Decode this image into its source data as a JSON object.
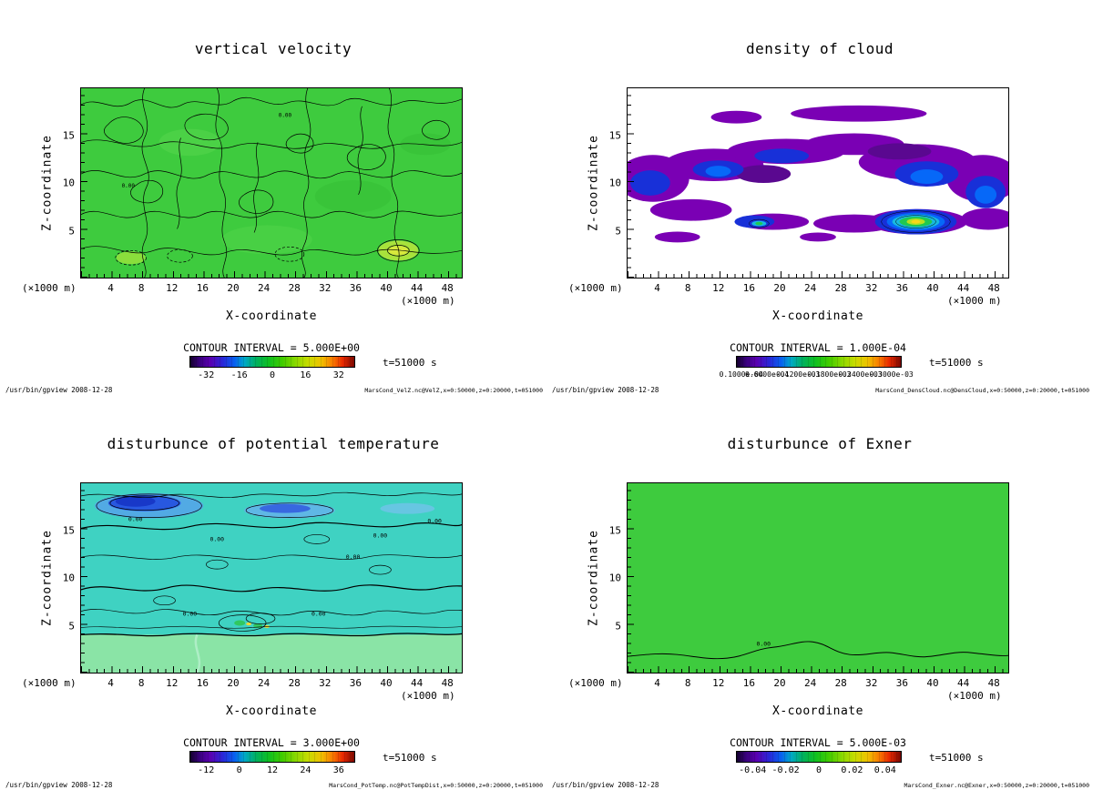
{
  "colors": {
    "background": "#ffffff",
    "plot_green": "#3ecb3e",
    "plot_turquoise": "#3fd2c2",
    "band_light_green": "#8ae4a6",
    "cloud_purple": "#7a00b4",
    "cloud_blue": "#1830d8",
    "contour_line": "#000000"
  },
  "shared": {
    "xlabel": "X-coordinate",
    "ylabel": "Z-coordinate",
    "unit_label": "(×1000 m)",
    "time_label": "t=51000 s",
    "footer_left": "/usr/bin/gpview  2008-12-28",
    "x_ticks": [
      4,
      8,
      12,
      16,
      20,
      24,
      28,
      32,
      36,
      40,
      44,
      48
    ],
    "y_ticks": [
      5,
      10,
      15
    ]
  },
  "panels": [
    {
      "title": "vertical velocity",
      "contour_interval": "CONTOUR INTERVAL = 5.000E+00",
      "colorbar_ticks": [
        -32,
        -16,
        0,
        16,
        32
      ],
      "contour_label": "0.00",
      "dataset": "MarsCond_VelZ.nc@VelZ,x=0:50000,z=0:20000,t=051000"
    },
    {
      "title": "density of cloud",
      "contour_interval": "CONTOUR INTERVAL = 1.000E-04",
      "colorbar_ticks": [
        {
          "v": 1e-05,
          "label": "0.1000e-04"
        },
        {
          "v": 6e-05,
          "label": "0.6000e-04"
        },
        {
          "v": 0.00012,
          "label": "0.1200e-03"
        },
        {
          "v": 0.00018,
          "label": "0.1800e-03"
        },
        {
          "v": 0.00024,
          "label": "0.2400e-03"
        },
        {
          "v": 0.0003,
          "label": "0.3000e-03"
        }
      ],
      "dataset": "MarsCond_DensCloud.nc@DensCloud,x=0:50000,z=0:20000,t=051000"
    },
    {
      "title": "disturbunce of potential temperature",
      "contour_interval": "CONTOUR INTERVAL = 3.000E+00",
      "colorbar_ticks": [
        -12,
        0,
        12,
        24,
        36
      ],
      "contour_label": "0.00",
      "dataset": "MarsCond_PotTemp.nc@PotTempDist,x=0:50000,z=0:20000,t=051000"
    },
    {
      "title": "disturbunce of Exner",
      "contour_interval": "CONTOUR INTERVAL = 5.000E-03",
      "colorbar_ticks": [
        -0.04,
        -0.02,
        0,
        0.02,
        0.04
      ],
      "contour_label": "0.00",
      "dataset": "MarsCond_Exner.nc@Exner,x=0:50000,z=0:20000,t=051000"
    }
  ],
  "chart_data": [
    {
      "type": "heatmap",
      "subtype": "filled-contour",
      "title": "vertical velocity",
      "xlabel": "X-coordinate (×1000 m)",
      "ylabel": "Z-coordinate (×1000 m)",
      "x_range": [
        0,
        50
      ],
      "y_range": [
        0,
        20
      ],
      "x_ticks": [
        4,
        8,
        12,
        16,
        20,
        24,
        28,
        32,
        36,
        40,
        44,
        48
      ],
      "y_ticks": [
        5,
        10,
        15
      ],
      "contour_interval": 5.0,
      "colorbar_ticks": [
        -32,
        -16,
        0,
        16,
        32
      ],
      "time": "t=51000 s",
      "source": "MarsCond_VelZ.nc@VelZ,x=0:50000,z=0:20000,t=051000",
      "description": "Dense wiggly black contours of vertical velocity over a nearly uniform green field (values near 0), small positive/negative cells near the surface"
    },
    {
      "type": "heatmap",
      "subtype": "filled-contour",
      "title": "density of cloud",
      "xlabel": "X-coordinate (×1000 m)",
      "ylabel": "Z-coordinate (×1000 m)",
      "x_range": [
        0,
        50
      ],
      "y_range": [
        0,
        20
      ],
      "x_ticks": [
        4,
        8,
        12,
        16,
        20,
        24,
        28,
        32,
        36,
        40,
        44,
        48
      ],
      "y_ticks": [
        5,
        10,
        15
      ],
      "contour_interval": 0.0001,
      "colorbar_ticks": [
        1e-05,
        6e-05,
        0.00012,
        0.00018,
        0.00024,
        0.0003
      ],
      "time": "t=51000 s",
      "source": "MarsCond_DensCloud.nc@DensCloud,x=0:50000,z=0:20000,t=051000",
      "description": "Purple/blue cloud-density patches in a band between z≈4 and z≈15, maxima (green/yellow cores) near x≈36-40, z≈5-7 and x≈16, z≈5"
    },
    {
      "type": "heatmap",
      "subtype": "filled-contour",
      "title": "disturbunce of potential temperature",
      "xlabel": "X-coordinate (×1000 m)",
      "ylabel": "Z-coordinate (×1000 m)",
      "x_range": [
        0,
        50
      ],
      "y_range": [
        0,
        20
      ],
      "x_ticks": [
        4,
        8,
        12,
        16,
        20,
        24,
        28,
        32,
        36,
        40,
        44,
        48
      ],
      "y_ticks": [
        5,
        10,
        15
      ],
      "contour_interval": 3.0,
      "colorbar_ticks": [
        -12,
        0,
        12,
        24,
        36
      ],
      "time": "t=51000 s",
      "source": "MarsCond_PotTemp.nc@PotTempDist,x=0:50000,z=0:20000,t=051000",
      "description": "Turquoise field with 0.00 contour lines, cold (blue) patches near the top around z≈17-18, light-green warmer layer below z≈4"
    },
    {
      "type": "heatmap",
      "subtype": "filled-contour",
      "title": "disturbunce of Exner",
      "xlabel": "X-coordinate (×1000 m)",
      "ylabel": "Z-coordinate (×1000 m)",
      "x_range": [
        0,
        50
      ],
      "y_range": [
        0,
        20
      ],
      "x_ticks": [
        4,
        8,
        12,
        16,
        20,
        24,
        28,
        32,
        36,
        40,
        44,
        48
      ],
      "y_ticks": [
        5,
        10,
        15
      ],
      "contour_interval": 0.005,
      "colorbar_ticks": [
        -0.04,
        -0.02,
        0,
        0.02,
        0.04
      ],
      "time": "t=51000 s",
      "source": "MarsCond_Exner.nc@Exner,x=0:50000,z=0:20000,t=051000",
      "description": "Uniform green field with a single wavy 0.00 contour near z≈2"
    }
  ]
}
